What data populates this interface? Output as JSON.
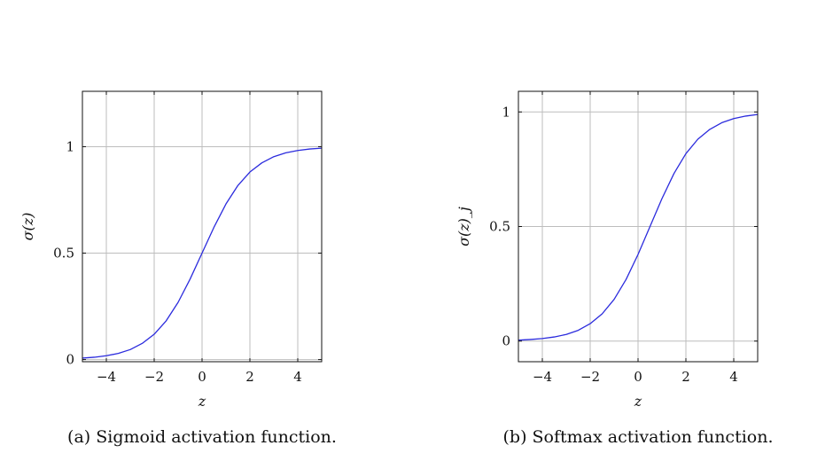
{
  "chart_data": [
    {
      "type": "line",
      "caption": "(a) Sigmoid activation function.",
      "xlabel": "z",
      "ylabel": "σ(z)",
      "xlim": [
        -5,
        5
      ],
      "ylim": [
        -0.01,
        1.26
      ],
      "xticks": [
        -4,
        -2,
        0,
        2,
        4
      ],
      "xtick_labels": [
        "−4",
        "−2",
        "0",
        "2",
        "4"
      ],
      "yticks": [
        0,
        0.5,
        1
      ],
      "ytick_labels": [
        "0",
        "0.5",
        "1"
      ],
      "grid": true,
      "color": "#2b2bdd",
      "series": [
        {
          "x": [
            -5,
            -4.5,
            -4,
            -3.5,
            -3,
            -2.5,
            -2,
            -1.5,
            -1,
            -0.5,
            0,
            0.5,
            1,
            1.5,
            2,
            2.5,
            3,
            3.5,
            4,
            4.5,
            5
          ],
          "y": [
            0.007,
            0.011,
            0.018,
            0.029,
            0.047,
            0.076,
            0.119,
            0.182,
            0.269,
            0.378,
            0.5,
            0.622,
            0.731,
            0.818,
            0.881,
            0.924,
            0.953,
            0.971,
            0.982,
            0.989,
            0.993
          ]
        }
      ]
    },
    {
      "type": "line",
      "caption": "(b) Softmax activation function.",
      "xlabel": "z",
      "ylabel": "σ(z)_j",
      "xlim": [
        -5,
        5
      ],
      "ylim": [
        -0.09,
        1.09
      ],
      "xticks": [
        -4,
        -2,
        0,
        2,
        4
      ],
      "xtick_labels": [
        "−4",
        "−2",
        "0",
        "2",
        "4"
      ],
      "yticks": [
        0,
        0.5,
        1
      ],
      "ytick_labels": [
        "0",
        "0.5",
        "1"
      ],
      "grid": true,
      "color": "#2b2bdd",
      "series": [
        {
          "x": [
            -5,
            -4.5,
            -4,
            -3.5,
            -3,
            -2.5,
            -2,
            -1.5,
            -1,
            -0.5,
            0,
            0.5,
            1,
            1.5,
            2,
            2.5,
            3,
            3.5,
            4,
            4.5,
            5
          ],
          "y": [
            0.004,
            0.007,
            0.011,
            0.018,
            0.029,
            0.047,
            0.076,
            0.119,
            0.182,
            0.269,
            0.378,
            0.5,
            0.622,
            0.731,
            0.818,
            0.881,
            0.924,
            0.953,
            0.971,
            0.982,
            0.989
          ]
        }
      ]
    }
  ]
}
